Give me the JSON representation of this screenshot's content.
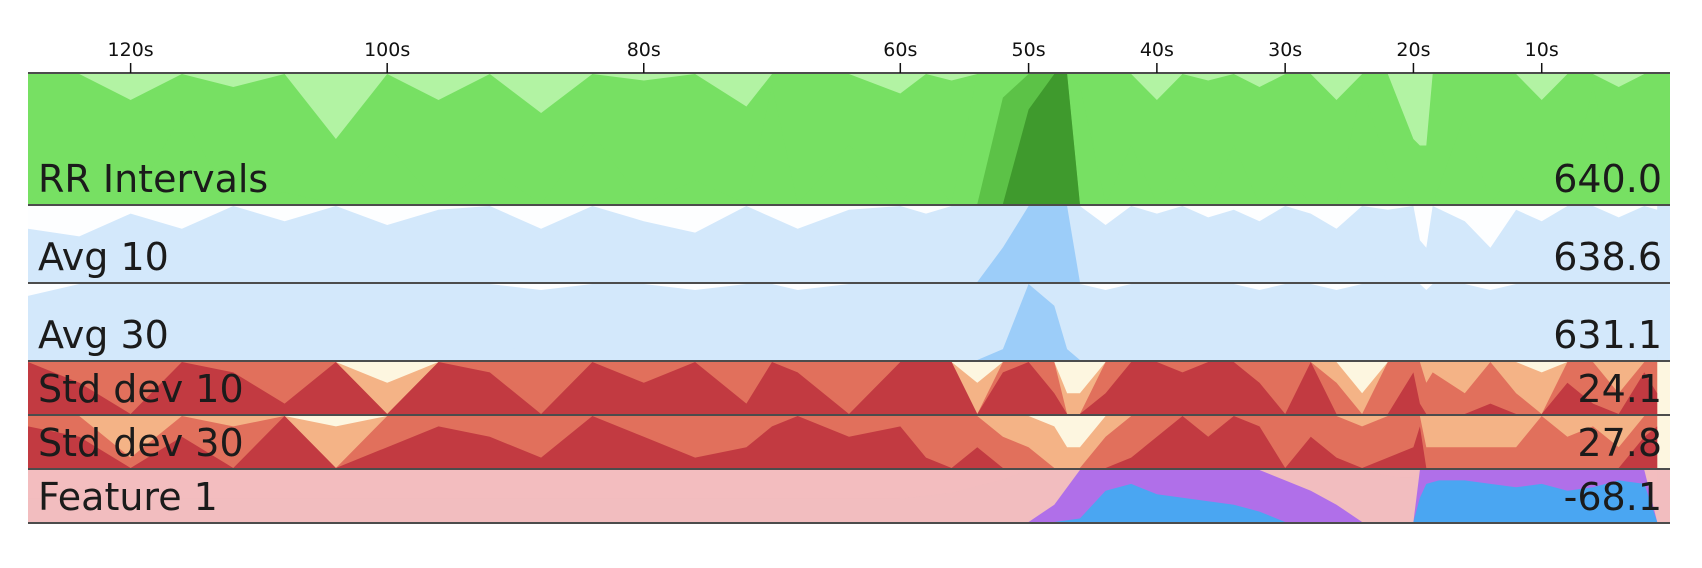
{
  "chart_data": {
    "type": "area",
    "x_axis": {
      "direction": "reversed",
      "range": [
        128,
        0
      ],
      "ticks": [
        {
          "value": 120,
          "label": "120s"
        },
        {
          "value": 100,
          "label": "100s"
        },
        {
          "value": 80,
          "label": "80s"
        },
        {
          "value": 60,
          "label": "60s"
        },
        {
          "value": 50,
          "label": "50s"
        },
        {
          "value": 40,
          "label": "40s"
        },
        {
          "value": 30,
          "label": "30s"
        },
        {
          "value": 20,
          "label": "20s"
        },
        {
          "value": 10,
          "label": "10s"
        }
      ],
      "grid": false
    },
    "tracks": [
      {
        "name": "RR Intervals",
        "display_value": "640.0",
        "style": "horizon",
        "background": "#77e063",
        "bands": [
          "#b5f3a7",
          "#77e063",
          "#5cc247",
          "#3f9a2d"
        ],
        "series": {
          "x": [
            128,
            124,
            120,
            116,
            112,
            108,
            104,
            100,
            96,
            92,
            88,
            84,
            80,
            76,
            72,
            70,
            68,
            64,
            60,
            58,
            56,
            54,
            52,
            50,
            48,
            47,
            46,
            44,
            42,
            40,
            38,
            36,
            34,
            32,
            30,
            28,
            26,
            24,
            22,
            20,
            19.5,
            19,
            18.5,
            16,
            14,
            12,
            10,
            8,
            6,
            4,
            2,
            1
          ],
          "y": [
            640,
            648,
            632,
            655,
            636,
            642,
            620,
            650,
            632,
            646,
            628,
            652,
            638,
            644,
            630,
            660,
            640,
            650,
            634,
            646,
            638,
            662,
            680,
            700,
            716,
            722,
            660,
            640,
            650,
            632,
            646,
            638,
            650,
            636,
            645,
            640,
            632,
            660,
            646,
            620,
            600,
            590,
            640,
            655,
            640,
            646,
            632,
            640,
            660,
            636,
            645,
            640
          ]
        }
      },
      {
        "name": "Avg 10",
        "display_value": "638.6",
        "style": "horizon",
        "background": "#d3e8fb",
        "bands": [
          "#ffffff",
          "#d3e8fb",
          "#9ccdf9"
        ],
        "series": {
          "x": [
            128,
            124,
            120,
            116,
            112,
            108,
            104,
            100,
            96,
            92,
            88,
            84,
            80,
            76,
            72,
            70,
            68,
            64,
            60,
            58,
            56,
            54,
            52,
            50,
            48,
            47,
            46,
            44,
            42,
            40,
            38,
            36,
            34,
            32,
            30,
            28,
            26,
            24,
            22,
            20,
            19.5,
            19,
            18.5,
            16,
            14,
            12,
            10,
            8,
            6,
            4,
            2,
            1
          ],
          "y": [
            628,
            624,
            636,
            628,
            640,
            632,
            648,
            630,
            638,
            646,
            628,
            640,
            632,
            626,
            642,
            634,
            628,
            638,
            644,
            636,
            640,
            650,
            672,
            690,
            706,
            712,
            646,
            630,
            640,
            636,
            646,
            634,
            638,
            632,
            640,
            636,
            628,
            654,
            638,
            642,
            622,
            600,
            650,
            632,
            612,
            638,
            632,
            640,
            650,
            634,
            640,
            638
          ]
        }
      },
      {
        "name": "Avg 30",
        "display_value": "631.1",
        "style": "horizon",
        "background": "#d3e8fb",
        "bands": [
          "#ffffff",
          "#d3e8fb",
          "#9ccdf9"
        ],
        "series": {
          "x": [
            128,
            124,
            120,
            116,
            112,
            108,
            104,
            100,
            96,
            92,
            88,
            84,
            80,
            76,
            72,
            70,
            68,
            64,
            60,
            58,
            56,
            54,
            52,
            50,
            48,
            47,
            46,
            44,
            42,
            40,
            38,
            36,
            34,
            32,
            30,
            28,
            26,
            24,
            22,
            20,
            19.5,
            19,
            18.5,
            16,
            14,
            12,
            10,
            8,
            6,
            4,
            2,
            1
          ],
          "y": [
            626,
            630,
            632,
            634,
            630,
            636,
            638,
            632,
            630,
            634,
            628,
            632,
            630,
            628,
            632,
            630,
            628,
            632,
            634,
            632,
            630,
            636,
            646,
            660,
            654,
            646,
            632,
            628,
            632,
            630,
            634,
            630,
            632,
            628,
            630,
            632,
            628,
            636,
            634,
            632,
            630,
            628,
            632,
            630,
            628,
            632,
            630,
            632,
            636,
            630,
            632,
            631
          ]
        }
      },
      {
        "name": "Std dev 10",
        "display_value": "24.1",
        "style": "horizon",
        "background": "#fdf6e0",
        "bands": [
          "#fdf6e0",
          "#f4b386",
          "#e1705c",
          "#c23a41"
        ],
        "series": {
          "x": [
            128,
            124,
            120,
            116,
            112,
            108,
            104,
            100,
            96,
            92,
            88,
            84,
            80,
            76,
            72,
            70,
            68,
            64,
            60,
            58,
            56,
            54,
            52,
            50,
            48,
            47,
            46,
            44,
            42,
            40,
            38,
            36,
            34,
            32,
            30,
            28,
            26,
            24,
            22,
            20,
            19.5,
            19,
            18.5,
            16,
            14,
            12,
            10,
            8,
            6,
            4,
            2,
            1
          ],
          "y": [
            32,
            26,
            20,
            34,
            28,
            22,
            30,
            6,
            36,
            28,
            20,
            34,
            26,
            30,
            22,
            38,
            28,
            20,
            32,
            36,
            30,
            6,
            28,
            30,
            24,
            4,
            4,
            24,
            30,
            36,
            28,
            32,
            38,
            26,
            20,
            30,
            16,
            4,
            20,
            28,
            22,
            16,
            18,
            14,
            22,
            14,
            8,
            26,
            22,
            14,
            28,
            24
          ]
        }
      },
      {
        "name": "Std dev 30",
        "display_value": "27.8",
        "style": "horizon",
        "background": "#fdf6e0",
        "bands": [
          "#fdf6e0",
          "#f4b386",
          "#e1705c",
          "#c23a41"
        ],
        "series": {
          "x": [
            128,
            124,
            120,
            116,
            112,
            108,
            104,
            100,
            96,
            92,
            88,
            84,
            80,
            76,
            72,
            70,
            68,
            64,
            60,
            58,
            56,
            54,
            52,
            50,
            48,
            47,
            46,
            44,
            42,
            40,
            38,
            36,
            34,
            32,
            30,
            28,
            26,
            24,
            22,
            20,
            19.5,
            19,
            18.5,
            16,
            14,
            12,
            10,
            8,
            6,
            4,
            2,
            1
          ],
          "y": [
            28,
            26,
            12,
            26,
            18,
            30,
            8,
            24,
            28,
            26,
            22,
            30,
            26,
            22,
            24,
            28,
            30,
            26,
            28,
            22,
            20,
            24,
            16,
            14,
            8,
            4,
            4,
            16,
            22,
            26,
            30,
            26,
            34,
            28,
            20,
            26,
            22,
            18,
            22,
            24,
            28,
            14,
            14,
            14,
            14,
            14,
            20,
            16,
            18,
            14,
            26,
            28
          ]
        }
      },
      {
        "name": "Feature 1",
        "display_value": "-68.1",
        "style": "horizon",
        "background": "#f2bdbf",
        "bands": [
          "#f2bdbf",
          "#b06fe9",
          "#4aa6f2"
        ],
        "series": {
          "x": [
            128,
            124,
            122,
            120,
            116,
            112,
            108,
            104,
            100,
            96,
            92,
            88,
            84,
            80,
            76,
            72,
            68,
            64,
            60,
            56,
            52,
            50,
            48,
            46,
            44,
            42,
            40,
            38,
            36,
            34,
            32,
            30,
            28,
            26,
            24,
            22,
            21,
            20,
            19.5,
            19,
            18,
            16,
            14,
            12,
            10,
            8,
            6,
            4,
            2,
            1
          ],
          "y": [
            -82,
            -96,
            -105,
            -100,
            -86,
            -78,
            -72,
            -70,
            -72,
            -70,
            -73,
            -78,
            -76,
            -72,
            -80,
            -92,
            -84,
            -78,
            -74,
            -64,
            -50,
            -40,
            -30,
            -8,
            8,
            12,
            6,
            4,
            2,
            0,
            -4,
            -16,
            -22,
            -30,
            -40,
            -46,
            -48,
            -48,
            4,
            12,
            14,
            14,
            12,
            10,
            12,
            8,
            10,
            14,
            12,
            -68
          ]
        }
      }
    ],
    "title": "",
    "xlabel": "",
    "ylabel": "",
    "legend": "none"
  }
}
